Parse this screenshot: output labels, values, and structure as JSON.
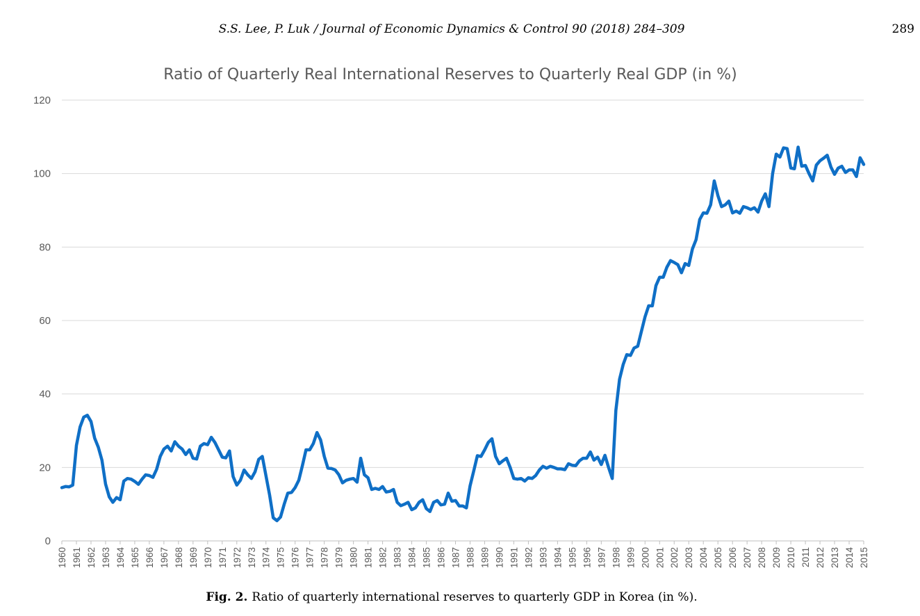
{
  "header": {
    "journal_ref": "S.S. Lee, P. Luk / Journal of Economic Dynamics & Control 90 (2018) 284–309",
    "page_number": "289"
  },
  "caption": {
    "label": "Fig. 2.",
    "text": "Ratio of quarterly international reserves to quarterly GDP in Korea (in %)."
  },
  "chart_data": {
    "type": "line",
    "title": "Ratio of Quarterly Real International Reserves to Quarterly Real GDP (in %)",
    "xlabel": "",
    "ylabel": "",
    "ylim": [
      0,
      120
    ],
    "yticks": [
      0,
      20,
      40,
      60,
      80,
      100,
      120
    ],
    "xlim": [
      1960,
      2015
    ],
    "xticks": [
      "1960",
      "1961",
      "1962",
      "1963",
      "1964",
      "1965",
      "1966",
      "1967",
      "1968",
      "1969",
      "1970",
      "1971",
      "1972",
      "1973",
      "1974",
      "1975",
      "1976",
      "1977",
      "1978",
      "1979",
      "1980",
      "1981",
      "1982",
      "1983",
      "1984",
      "1985",
      "1986",
      "1987",
      "1988",
      "1989",
      "1990",
      "1991",
      "1992",
      "1993",
      "1994",
      "1995",
      "1996",
      "1997",
      "1998",
      "1999",
      "2000",
      "2001",
      "2002",
      "2003",
      "2004",
      "2005",
      "2006",
      "2007",
      "2008",
      "2009",
      "2010",
      "2011",
      "2012",
      "2013",
      "2014",
      "2015"
    ],
    "grid": "horizontal",
    "line_color": "#0f6fc6",
    "series": [
      {
        "values": [
          [
            1960.0,
            14.5
          ],
          [
            1960.25,
            14.8
          ],
          [
            1960.5,
            14.7
          ],
          [
            1960.75,
            15.2
          ],
          [
            1961.0,
            26.0
          ],
          [
            1961.25,
            31.0
          ],
          [
            1961.5,
            33.7
          ],
          [
            1961.75,
            34.2
          ],
          [
            1962.0,
            32.5
          ],
          [
            1962.25,
            28.0
          ],
          [
            1962.5,
            25.5
          ],
          [
            1962.75,
            22.0
          ],
          [
            1963.0,
            15.5
          ],
          [
            1963.25,
            12.0
          ],
          [
            1963.5,
            10.5
          ],
          [
            1963.75,
            11.8
          ],
          [
            1964.0,
            11.2
          ],
          [
            1964.25,
            16.3
          ],
          [
            1964.5,
            17.0
          ],
          [
            1964.75,
            16.8
          ],
          [
            1965.0,
            16.2
          ],
          [
            1965.25,
            15.4
          ],
          [
            1965.5,
            16.8
          ],
          [
            1965.75,
            18.0
          ],
          [
            1966.0,
            17.8
          ],
          [
            1966.25,
            17.3
          ],
          [
            1966.5,
            19.5
          ],
          [
            1966.75,
            23.0
          ],
          [
            1967.0,
            25.0
          ],
          [
            1967.25,
            25.8
          ],
          [
            1967.5,
            24.5
          ],
          [
            1967.75,
            27.0
          ],
          [
            1968.0,
            25.8
          ],
          [
            1968.25,
            25.0
          ],
          [
            1968.5,
            23.5
          ],
          [
            1968.75,
            24.8
          ],
          [
            1969.0,
            22.5
          ],
          [
            1969.25,
            22.3
          ],
          [
            1969.5,
            25.8
          ],
          [
            1969.75,
            26.5
          ],
          [
            1970.0,
            26.2
          ],
          [
            1970.25,
            28.2
          ],
          [
            1970.5,
            26.8
          ],
          [
            1970.75,
            24.8
          ],
          [
            1971.0,
            22.8
          ],
          [
            1971.25,
            22.6
          ],
          [
            1971.5,
            24.5
          ],
          [
            1971.75,
            17.5
          ],
          [
            1972.0,
            15.2
          ],
          [
            1972.25,
            16.5
          ],
          [
            1972.5,
            19.3
          ],
          [
            1972.75,
            18.0
          ],
          [
            1973.0,
            17.0
          ],
          [
            1973.25,
            18.8
          ],
          [
            1973.5,
            22.2
          ],
          [
            1973.75,
            23.0
          ],
          [
            1974.0,
            17.8
          ],
          [
            1974.25,
            12.5
          ],
          [
            1974.5,
            6.3
          ],
          [
            1974.75,
            5.5
          ],
          [
            1975.0,
            6.5
          ],
          [
            1975.25,
            10.0
          ],
          [
            1975.5,
            13.0
          ],
          [
            1975.75,
            13.2
          ],
          [
            1976.0,
            14.5
          ],
          [
            1976.25,
            16.5
          ],
          [
            1976.5,
            20.5
          ],
          [
            1976.75,
            24.8
          ],
          [
            1977.0,
            24.8
          ],
          [
            1977.25,
            26.5
          ],
          [
            1977.5,
            29.5
          ],
          [
            1977.75,
            27.5
          ],
          [
            1978.0,
            23.0
          ],
          [
            1978.25,
            19.8
          ],
          [
            1978.5,
            19.7
          ],
          [
            1978.75,
            19.3
          ],
          [
            1979.0,
            18.0
          ],
          [
            1979.25,
            15.8
          ],
          [
            1979.5,
            16.5
          ],
          [
            1979.75,
            16.8
          ],
          [
            1980.0,
            17.0
          ],
          [
            1980.25,
            16.0
          ],
          [
            1980.5,
            22.5
          ],
          [
            1980.75,
            18.0
          ],
          [
            1981.0,
            17.2
          ],
          [
            1981.25,
            14.0
          ],
          [
            1981.5,
            14.3
          ],
          [
            1981.75,
            14.0
          ],
          [
            1982.0,
            14.8
          ],
          [
            1982.25,
            13.3
          ],
          [
            1982.5,
            13.5
          ],
          [
            1982.75,
            14.0
          ],
          [
            1983.0,
            10.5
          ],
          [
            1983.25,
            9.6
          ],
          [
            1983.5,
            10.0
          ],
          [
            1983.75,
            10.5
          ],
          [
            1984.0,
            8.5
          ],
          [
            1984.25,
            9.0
          ],
          [
            1984.5,
            10.5
          ],
          [
            1984.75,
            11.2
          ],
          [
            1985.0,
            8.8
          ],
          [
            1985.25,
            8.0
          ],
          [
            1985.5,
            10.5
          ],
          [
            1985.75,
            11.0
          ],
          [
            1986.0,
            9.8
          ],
          [
            1986.25,
            10.0
          ],
          [
            1986.5,
            13.0
          ],
          [
            1986.75,
            10.8
          ],
          [
            1987.0,
            11.0
          ],
          [
            1987.25,
            9.5
          ],
          [
            1987.5,
            9.5
          ],
          [
            1987.75,
            9.0
          ],
          [
            1988.0,
            15.0
          ],
          [
            1988.25,
            19.0
          ],
          [
            1988.5,
            23.2
          ],
          [
            1988.75,
            23.0
          ],
          [
            1989.0,
            24.8
          ],
          [
            1989.25,
            26.8
          ],
          [
            1989.5,
            27.8
          ],
          [
            1989.75,
            23.0
          ],
          [
            1990.0,
            21.0
          ],
          [
            1990.25,
            21.8
          ],
          [
            1990.5,
            22.5
          ],
          [
            1990.75,
            20.0
          ],
          [
            1991.0,
            17.0
          ],
          [
            1991.25,
            16.8
          ],
          [
            1991.5,
            17.0
          ],
          [
            1991.75,
            16.3
          ],
          [
            1992.0,
            17.2
          ],
          [
            1992.25,
            17.0
          ],
          [
            1992.5,
            17.8
          ],
          [
            1992.75,
            19.3
          ],
          [
            1993.0,
            20.3
          ],
          [
            1993.25,
            19.8
          ],
          [
            1993.5,
            20.3
          ],
          [
            1993.75,
            20.0
          ],
          [
            1994.0,
            19.6
          ],
          [
            1994.25,
            19.6
          ],
          [
            1994.5,
            19.4
          ],
          [
            1994.75,
            21.0
          ],
          [
            1995.0,
            20.6
          ],
          [
            1995.25,
            20.5
          ],
          [
            1995.5,
            21.8
          ],
          [
            1995.75,
            22.5
          ],
          [
            1996.0,
            22.5
          ],
          [
            1996.25,
            24.2
          ],
          [
            1996.5,
            22.0
          ],
          [
            1996.75,
            22.8
          ],
          [
            1997.0,
            20.8
          ],
          [
            1997.25,
            23.3
          ],
          [
            1997.5,
            20.0
          ],
          [
            1997.75,
            17.0
          ],
          [
            1998.0,
            35.5
          ],
          [
            1998.25,
            44.0
          ],
          [
            1998.5,
            48.0
          ],
          [
            1998.75,
            50.7
          ],
          [
            1999.0,
            50.5
          ],
          [
            1999.25,
            52.5
          ],
          [
            1999.5,
            53.0
          ],
          [
            1999.75,
            57.0
          ],
          [
            2000.0,
            61.0
          ],
          [
            2000.25,
            64.0
          ],
          [
            2000.5,
            64.0
          ],
          [
            2000.75,
            69.5
          ],
          [
            2001.0,
            71.8
          ],
          [
            2001.25,
            71.8
          ],
          [
            2001.5,
            74.5
          ],
          [
            2001.75,
            76.3
          ],
          [
            2002.0,
            75.8
          ],
          [
            2002.25,
            75.2
          ],
          [
            2002.5,
            73.0
          ],
          [
            2002.75,
            75.5
          ],
          [
            2003.0,
            75.0
          ],
          [
            2003.25,
            79.5
          ],
          [
            2003.5,
            82.0
          ],
          [
            2003.75,
            87.5
          ],
          [
            2004.0,
            89.3
          ],
          [
            2004.25,
            89.2
          ],
          [
            2004.5,
            91.5
          ],
          [
            2004.75,
            98.0
          ],
          [
            2005.0,
            94.0
          ],
          [
            2005.25,
            91.0
          ],
          [
            2005.5,
            91.5
          ],
          [
            2005.75,
            92.5
          ],
          [
            2006.0,
            89.3
          ],
          [
            2006.25,
            89.8
          ],
          [
            2006.5,
            89.2
          ],
          [
            2006.75,
            91.0
          ],
          [
            2007.0,
            90.7
          ],
          [
            2007.25,
            90.2
          ],
          [
            2007.5,
            90.7
          ],
          [
            2007.75,
            89.5
          ],
          [
            2008.0,
            92.5
          ],
          [
            2008.25,
            94.5
          ],
          [
            2008.5,
            91.0
          ],
          [
            2008.75,
            100.0
          ],
          [
            2009.0,
            105.3
          ],
          [
            2009.25,
            104.5
          ],
          [
            2009.5,
            107.0
          ],
          [
            2009.75,
            106.8
          ],
          [
            2010.0,
            101.5
          ],
          [
            2010.25,
            101.3
          ],
          [
            2010.5,
            107.2
          ],
          [
            2010.75,
            102.0
          ],
          [
            2011.0,
            102.2
          ],
          [
            2011.25,
            100.0
          ],
          [
            2011.5,
            98.0
          ],
          [
            2011.75,
            102.3
          ],
          [
            2012.0,
            103.5
          ],
          [
            2012.25,
            104.2
          ],
          [
            2012.5,
            105.0
          ],
          [
            2012.75,
            101.8
          ],
          [
            2013.0,
            99.8
          ],
          [
            2013.25,
            101.5
          ],
          [
            2013.5,
            102.0
          ],
          [
            2013.75,
            100.3
          ],
          [
            2014.0,
            101.0
          ],
          [
            2014.25,
            101.0
          ],
          [
            2014.5,
            99.2
          ],
          [
            2014.75,
            104.3
          ],
          [
            2015.0,
            102.5
          ]
        ]
      }
    ]
  }
}
